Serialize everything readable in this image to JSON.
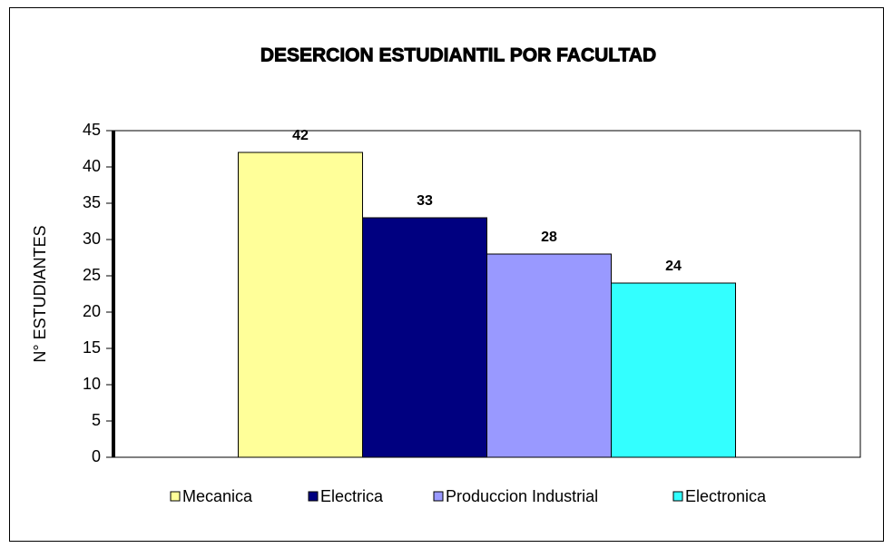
{
  "chart_data": {
    "type": "bar",
    "title": "DESERCION ESTUDIANTIL POR FACULTAD",
    "y_label": "N° ESTUDIANTES",
    "series": [
      {
        "name": "Mecanica",
        "color": "#ffff99",
        "values": [
          42
        ]
      },
      {
        "name": "Electrica",
        "color": "#000080",
        "values": [
          33
        ]
      },
      {
        "name": "Produccion Industrial",
        "color": "#9999ff",
        "values": [
          28
        ]
      },
      {
        "name": "Electronica",
        "color": "#33ffff",
        "values": [
          24
        ]
      }
    ],
    "ylim": [
      0,
      45
    ],
    "yticks": [
      0,
      5,
      10,
      15,
      20,
      25,
      30,
      35,
      40,
      45
    ],
    "legend": "bottom"
  }
}
